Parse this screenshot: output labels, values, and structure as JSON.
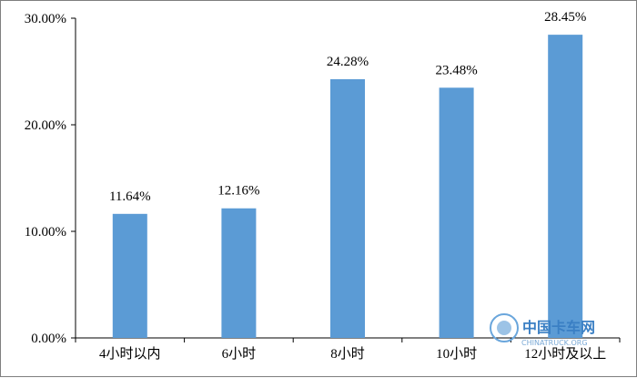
{
  "chart_data": {
    "type": "bar",
    "categories": [
      "4小时以内",
      "6小时",
      "8小时",
      "10小时",
      "12小时及以上"
    ],
    "values": [
      11.64,
      12.16,
      24.28,
      23.48,
      28.45
    ],
    "data_labels": [
      "11.64%",
      "12.16%",
      "24.28%",
      "23.48%",
      "28.45%"
    ],
    "ylim": [
      0,
      30
    ],
    "yticks": [
      0,
      10,
      20,
      30
    ],
    "ytick_labels": [
      "0.00%",
      "10.00%",
      "20.00%",
      "30.00%"
    ],
    "bar_color": "#5b9bd5",
    "grid": false,
    "legend": "none"
  },
  "watermark": {
    "text": "中国卡车网",
    "subtext": "CHINATRUCK.ORG",
    "color": "#3a7fc4"
  }
}
